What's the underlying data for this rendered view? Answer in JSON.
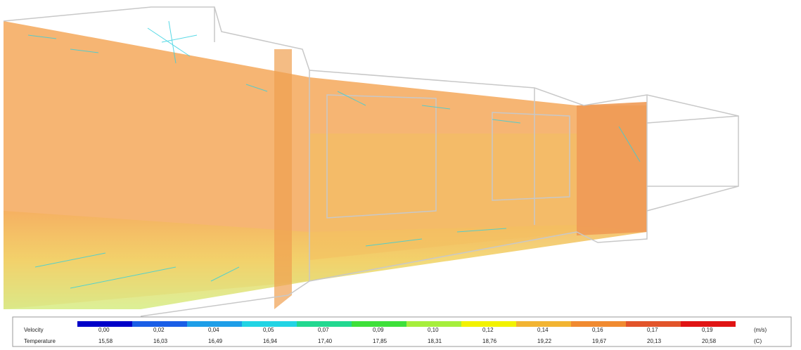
{
  "legend": {
    "colors": [
      "#0000c8",
      "#1a5ee6",
      "#1e9ee8",
      "#22d4e4",
      "#22d890",
      "#3ee03a",
      "#a6ee3c",
      "#f2f200",
      "#f2b432",
      "#f08a30",
      "#e2542a",
      "#e01414"
    ],
    "rows": [
      {
        "label": "Velocity",
        "unit": "(m/s)",
        "values": [
          "0,00",
          "0,02",
          "0,04",
          "0,05",
          "0,07",
          "0,09",
          "0,10",
          "0,12",
          "0,14",
          "0,16",
          "0,17",
          "0,19"
        ]
      },
      {
        "label": "Temperature",
        "unit": "(C)",
        "values": [
          "15,58",
          "16,03",
          "16,49",
          "16,94",
          "17,40",
          "17,85",
          "18,31",
          "18,76",
          "19,22",
          "19,67",
          "20,13",
          "20,58"
        ]
      }
    ]
  }
}
